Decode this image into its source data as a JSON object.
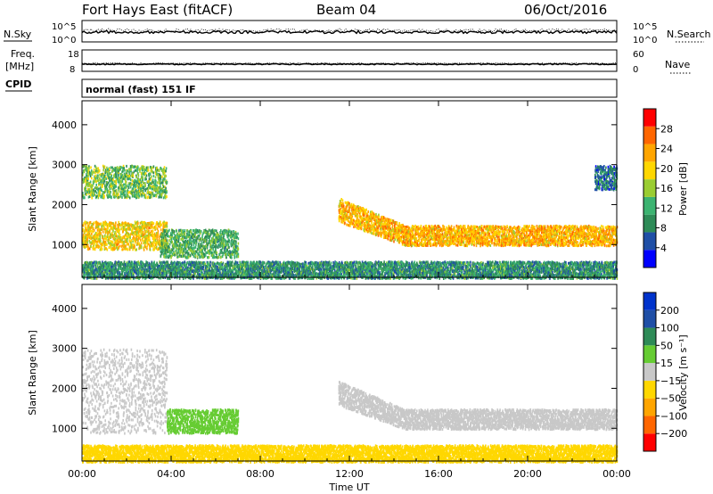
{
  "header": {
    "station": "Fort Hays East (fitACF)",
    "beam": "Beam 04",
    "date": "06/Oct/2016"
  },
  "strips": {
    "nsky_label": "N.Sky",
    "nsearch_label": "N.Search",
    "freq_label_line1": "Freq.",
    "freq_label_line2": "[MHz]",
    "nave_label": "Nave",
    "cpid_label": "CPID",
    "cpid_text": "normal (fast) 151 IF",
    "noise_ticks_left": [
      "10^5",
      "10^0"
    ],
    "noise_ticks_right": [
      "10^5",
      "10^0"
    ],
    "freq_ticks": [
      "18",
      "8"
    ],
    "nave_ticks": [
      "60",
      "0"
    ]
  },
  "colors": {
    "power": [
      "#0000ff",
      "#1f4fa6",
      "#2e8b57",
      "#3cb371",
      "#9acd32",
      "#ffd700",
      "#ffa500",
      "#ff6600",
      "#ff0000"
    ],
    "velocity": [
      "#ff0000",
      "#ff6600",
      "#ffa500",
      "#ffd700",
      "#c8c8c8",
      "#66cc33",
      "#2e8b57",
      "#1f4fa6",
      "#0033cc"
    ]
  },
  "chart_data": [
    {
      "type": "heatmap",
      "name": "power",
      "ylabel": "Slant Range [km]",
      "xlabel": "Time UT",
      "x_range": [
        "00:00",
        "24:00"
      ],
      "ylim": [
        180,
        4600
      ],
      "x_ticks": [
        "00:00",
        "04:00",
        "08:00",
        "12:00",
        "16:00",
        "20:00",
        "00:00"
      ],
      "y_ticks": [
        1000,
        2000,
        3000,
        4000
      ],
      "colorbar": {
        "label": "Power [dB]",
        "range": [
          0,
          32
        ],
        "ticks": [
          4,
          8,
          12,
          16,
          20,
          24,
          28
        ]
      },
      "regions": [
        {
          "t": [
            0.0,
            3.8
          ],
          "range_km": [
            900,
            1600
          ],
          "power_db": 20
        },
        {
          "t": [
            0.0,
            3.8
          ],
          "range_km": [
            2200,
            3000
          ],
          "power_db": 14
        },
        {
          "t": [
            3.5,
            7.0
          ],
          "range_km": [
            700,
            1400
          ],
          "power_db": 12
        },
        {
          "t": [
            11.5,
            24.0
          ],
          "range_km": [
            900,
            2000
          ],
          "power_db": 22
        },
        {
          "t": [
            23.0,
            24.0
          ],
          "range_km": [
            2400,
            3000
          ],
          "power_db": 8
        },
        {
          "t": [
            0.0,
            24.0
          ],
          "range_km": [
            180,
            600
          ],
          "power_db": 10
        }
      ]
    },
    {
      "type": "heatmap",
      "name": "velocity",
      "ylabel": "Slant Range [km]",
      "xlabel": "Time UT",
      "x_range": [
        "00:00",
        "24:00"
      ],
      "ylim": [
        180,
        4600
      ],
      "x_ticks": [
        "00:00",
        "04:00",
        "08:00",
        "12:00",
        "16:00",
        "20:00",
        "00:00"
      ],
      "y_ticks": [
        1000,
        2000,
        3000,
        4000
      ],
      "colorbar": {
        "label": "Velocity [m s⁻¹]",
        "range": [
          -250,
          250
        ],
        "ticks": [
          "200",
          "100",
          "50",
          "15",
          "−15",
          "−50",
          "−100",
          "−200"
        ]
      },
      "regions": [
        {
          "t": [
            0.0,
            3.8
          ],
          "range_km": [
            900,
            3000
          ],
          "velocity_ms": 0
        },
        {
          "t": [
            3.8,
            7.0
          ],
          "range_km": [
            900,
            1500
          ],
          "velocity_ms": 40
        },
        {
          "t": [
            11.5,
            24.0
          ],
          "range_km": [
            900,
            2000
          ],
          "velocity_ms": 0
        },
        {
          "t": [
            0.0,
            24.0
          ],
          "range_km": [
            180,
            600
          ],
          "velocity_ms": -40
        }
      ]
    }
  ],
  "x_axis_label": "Time UT"
}
